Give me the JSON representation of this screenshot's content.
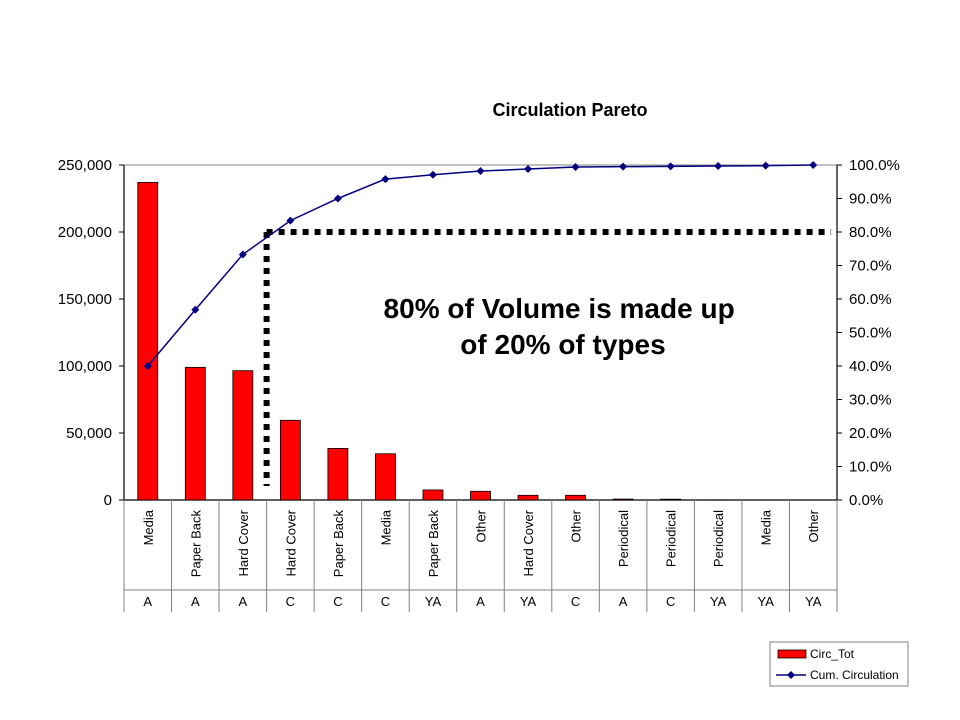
{
  "chart_data": {
    "type": "bar",
    "title": "Circulation Pareto",
    "categories": [
      "Media",
      "Paper Back",
      "Hard Cover",
      "Hard Cover",
      "Paper Back",
      "Media",
      "Paper Back",
      "Other",
      "Hard Cover",
      "Other",
      "Periodical",
      "Periodical",
      "Periodical",
      "Media",
      "Other"
    ],
    "groups": [
      "A",
      "A",
      "A",
      "C",
      "C",
      "C",
      "YA",
      "A",
      "YA",
      "C",
      "A",
      "C",
      "YA",
      "YA",
      "YA"
    ],
    "series": [
      {
        "name": "Circ_Tot",
        "type": "bar",
        "axis": "left",
        "color": "#ff0000",
        "values": [
          237000,
          99000,
          96500,
          59500,
          38500,
          34500,
          7500,
          6500,
          3500,
          3500,
          700,
          600,
          100,
          50,
          20
        ]
      },
      {
        "name": "Cum. Circulation",
        "type": "line",
        "axis": "right",
        "color": "#000080",
        "values": [
          40.0,
          56.8,
          73.3,
          83.4,
          90.0,
          95.8,
          97.1,
          98.2,
          98.8,
          99.4,
          99.5,
          99.6,
          99.7,
          99.8,
          100.0
        ]
      }
    ],
    "left_axis": {
      "ylim": [
        0,
        250000
      ],
      "ticks": [
        "0",
        "50,000",
        "100,000",
        "150,000",
        "200,000",
        "250,000"
      ]
    },
    "right_axis": {
      "ylim": [
        0,
        100
      ],
      "ticks": [
        "0.0%",
        "10.0%",
        "20.0%",
        "30.0%",
        "40.0%",
        "50.0%",
        "60.0%",
        "70.0%",
        "80.0%",
        "90.0%",
        "100.0%"
      ]
    },
    "threshold_percent": 80,
    "annotation": [
      "80% of Volume is made up",
      "of 20% of types"
    ],
    "legend_position": "bottom-right",
    "grid": false
  }
}
